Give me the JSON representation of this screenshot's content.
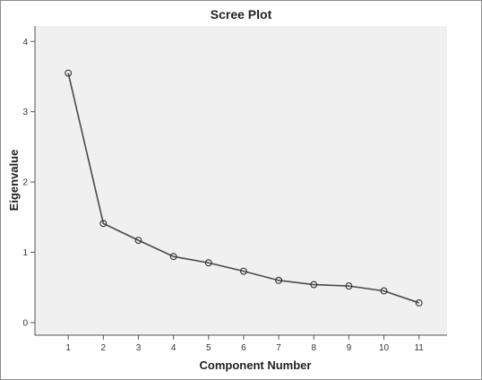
{
  "chart_data": {
    "type": "line",
    "title": "Scree Plot",
    "xlabel": "Component Number",
    "ylabel": "Eigenvalue",
    "x": [
      1,
      2,
      3,
      4,
      5,
      6,
      7,
      8,
      9,
      10,
      11
    ],
    "x_tick_labels": [
      "1",
      "2",
      "3",
      "4",
      "5",
      "6",
      "7",
      "8",
      "9",
      "10",
      "11"
    ],
    "y_ticks": [
      0,
      1,
      2,
      3,
      4
    ],
    "y_tick_labels": [
      "0",
      "1",
      "2",
      "3",
      "4"
    ],
    "xlim": [
      0.05,
      11.8
    ],
    "ylim": [
      -0.18,
      4.22
    ],
    "grid": false,
    "markers": "open-circle",
    "series": [
      {
        "values": [
          3.55,
          1.41,
          1.17,
          0.94,
          0.85,
          0.73,
          0.6,
          0.54,
          0.52,
          0.45,
          0.28
        ]
      }
    ],
    "colors": {
      "plot_background": "#f0f0f0",
      "line": "#4a4a4a",
      "marker_stroke": "#333333",
      "axis": "#555555"
    }
  }
}
